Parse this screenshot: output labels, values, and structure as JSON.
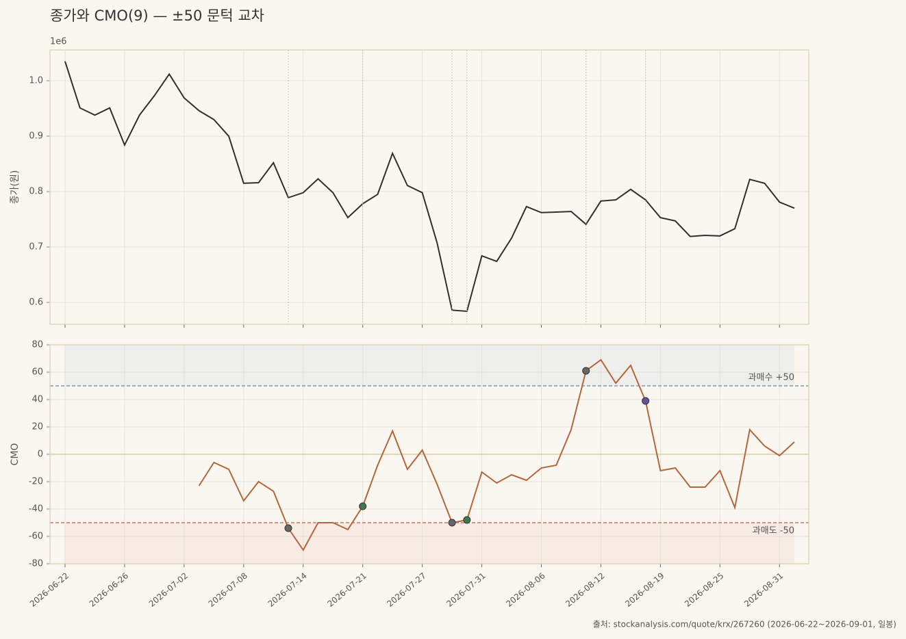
{
  "chart_data": [
    {
      "type": "line",
      "title": "종가와 CMO(9) — ±50 문턱 교차",
      "offset_label": "1e6",
      "ylabel": "종가(원)",
      "categories": [
        "2026-06-22",
        "2026-06-23",
        "2026-06-24",
        "2026-06-25",
        "2026-06-26",
        "2026-06-29",
        "2026-06-30",
        "2026-07-01",
        "2026-07-02",
        "2026-07-03",
        "2026-07-06",
        "2026-07-07",
        "2026-07-08",
        "2026-07-09",
        "2026-07-10",
        "2026-07-13",
        "2026-07-14",
        "2026-07-15",
        "2026-07-16",
        "2026-07-20",
        "2026-07-21",
        "2026-07-22",
        "2026-07-23",
        "2026-07-24",
        "2026-07-27",
        "2026-07-28",
        "2026-07-29",
        "2026-07-30",
        "2026-07-31",
        "2026-08-03",
        "2026-08-04",
        "2026-08-05",
        "2026-08-06",
        "2026-08-07",
        "2026-08-10",
        "2026-08-11",
        "2026-08-12",
        "2026-08-13",
        "2026-08-14",
        "2026-08-18",
        "2026-08-19",
        "2026-08-20",
        "2026-08-21",
        "2026-08-24",
        "2026-08-25",
        "2026-08-26",
        "2026-08-27",
        "2026-08-28",
        "2026-08-31",
        "2026-09-01"
      ],
      "xticks": [
        "2026-06-22",
        "2026-06-26",
        "2026-07-02",
        "2026-07-08",
        "2026-07-14",
        "2026-07-21",
        "2026-07-27",
        "2026-07-31",
        "2026-08-06",
        "2026-08-12",
        "2026-08-19",
        "2026-08-25",
        "2026-08-31"
      ],
      "series": [
        {
          "name": "종가",
          "color": "#2f2f2f",
          "values": [
            1035000,
            951000,
            938000,
            951000,
            884000,
            938000,
            973000,
            1012000,
            969000,
            946000,
            930000,
            900000,
            815000,
            816000,
            852000,
            789000,
            798000,
            823000,
            798000,
            753000,
            778000,
            795000,
            869000,
            811000,
            798000,
            707000,
            586000,
            584000,
            684000,
            674000,
            716000,
            773000,
            762000,
            763000,
            764000,
            741000,
            783000,
            785000,
            804000,
            785000,
            753000,
            747000,
            719000,
            721000,
            720000,
            733000,
            822000,
            815000,
            781000,
            770000
          ]
        }
      ],
      "ylim": [
        560500,
        1055600
      ],
      "yticks": [
        {
          "value": 600000,
          "label": "0.6"
        },
        {
          "value": 700000,
          "label": "0.7"
        },
        {
          "value": 800000,
          "label": "0.8"
        },
        {
          "value": 900000,
          "label": "0.9"
        },
        {
          "value": 1000000,
          "label": "1.0"
        }
      ],
      "grid": true
    },
    {
      "type": "line",
      "ylabel": "CMO",
      "series": [
        {
          "name": "CMO",
          "color": "#b5653a",
          "values": [
            null,
            null,
            null,
            null,
            null,
            null,
            null,
            null,
            null,
            -23,
            -6,
            -11,
            -34,
            -20,
            -27,
            -54,
            -70,
            -50,
            -50,
            -55,
            -38,
            -8,
            17,
            -11,
            3,
            -22,
            -50,
            -48,
            -13,
            -21,
            -15,
            -19,
            -10,
            -8,
            18,
            61,
            69,
            52,
            65,
            39,
            -12,
            -10,
            -24,
            -24,
            -12,
            -39,
            18,
            6,
            -1,
            9
          ]
        }
      ],
      "ylim": [
        -80,
        80
      ],
      "yticks": [
        -80,
        -60,
        -40,
        -20,
        0,
        20,
        40,
        60,
        80
      ],
      "thresholds": [
        {
          "value": 50,
          "label": "과매수 +50",
          "color": "#5b86b0",
          "shade": "#eeeeec",
          "to": 80
        },
        {
          "value": -50,
          "label": "과매도 -50",
          "color": "#d0544a",
          "shade": "#f7ebe4",
          "to": -80
        }
      ],
      "markers": [
        {
          "index": 15,
          "color": "#666666"
        },
        {
          "index": 20,
          "color": "#3f7a4f"
        },
        {
          "index": 26,
          "color": "#666666"
        },
        {
          "index": 27,
          "color": "#3f7a4f"
        },
        {
          "index": 35,
          "color": "#666666"
        },
        {
          "index": 39,
          "color": "#6a4f9a"
        }
      ],
      "grid": true
    }
  ],
  "source": "출처: stockanalysis.com/quote/krx/267260 (2026-06-22~2026-09-01, 일봉)"
}
